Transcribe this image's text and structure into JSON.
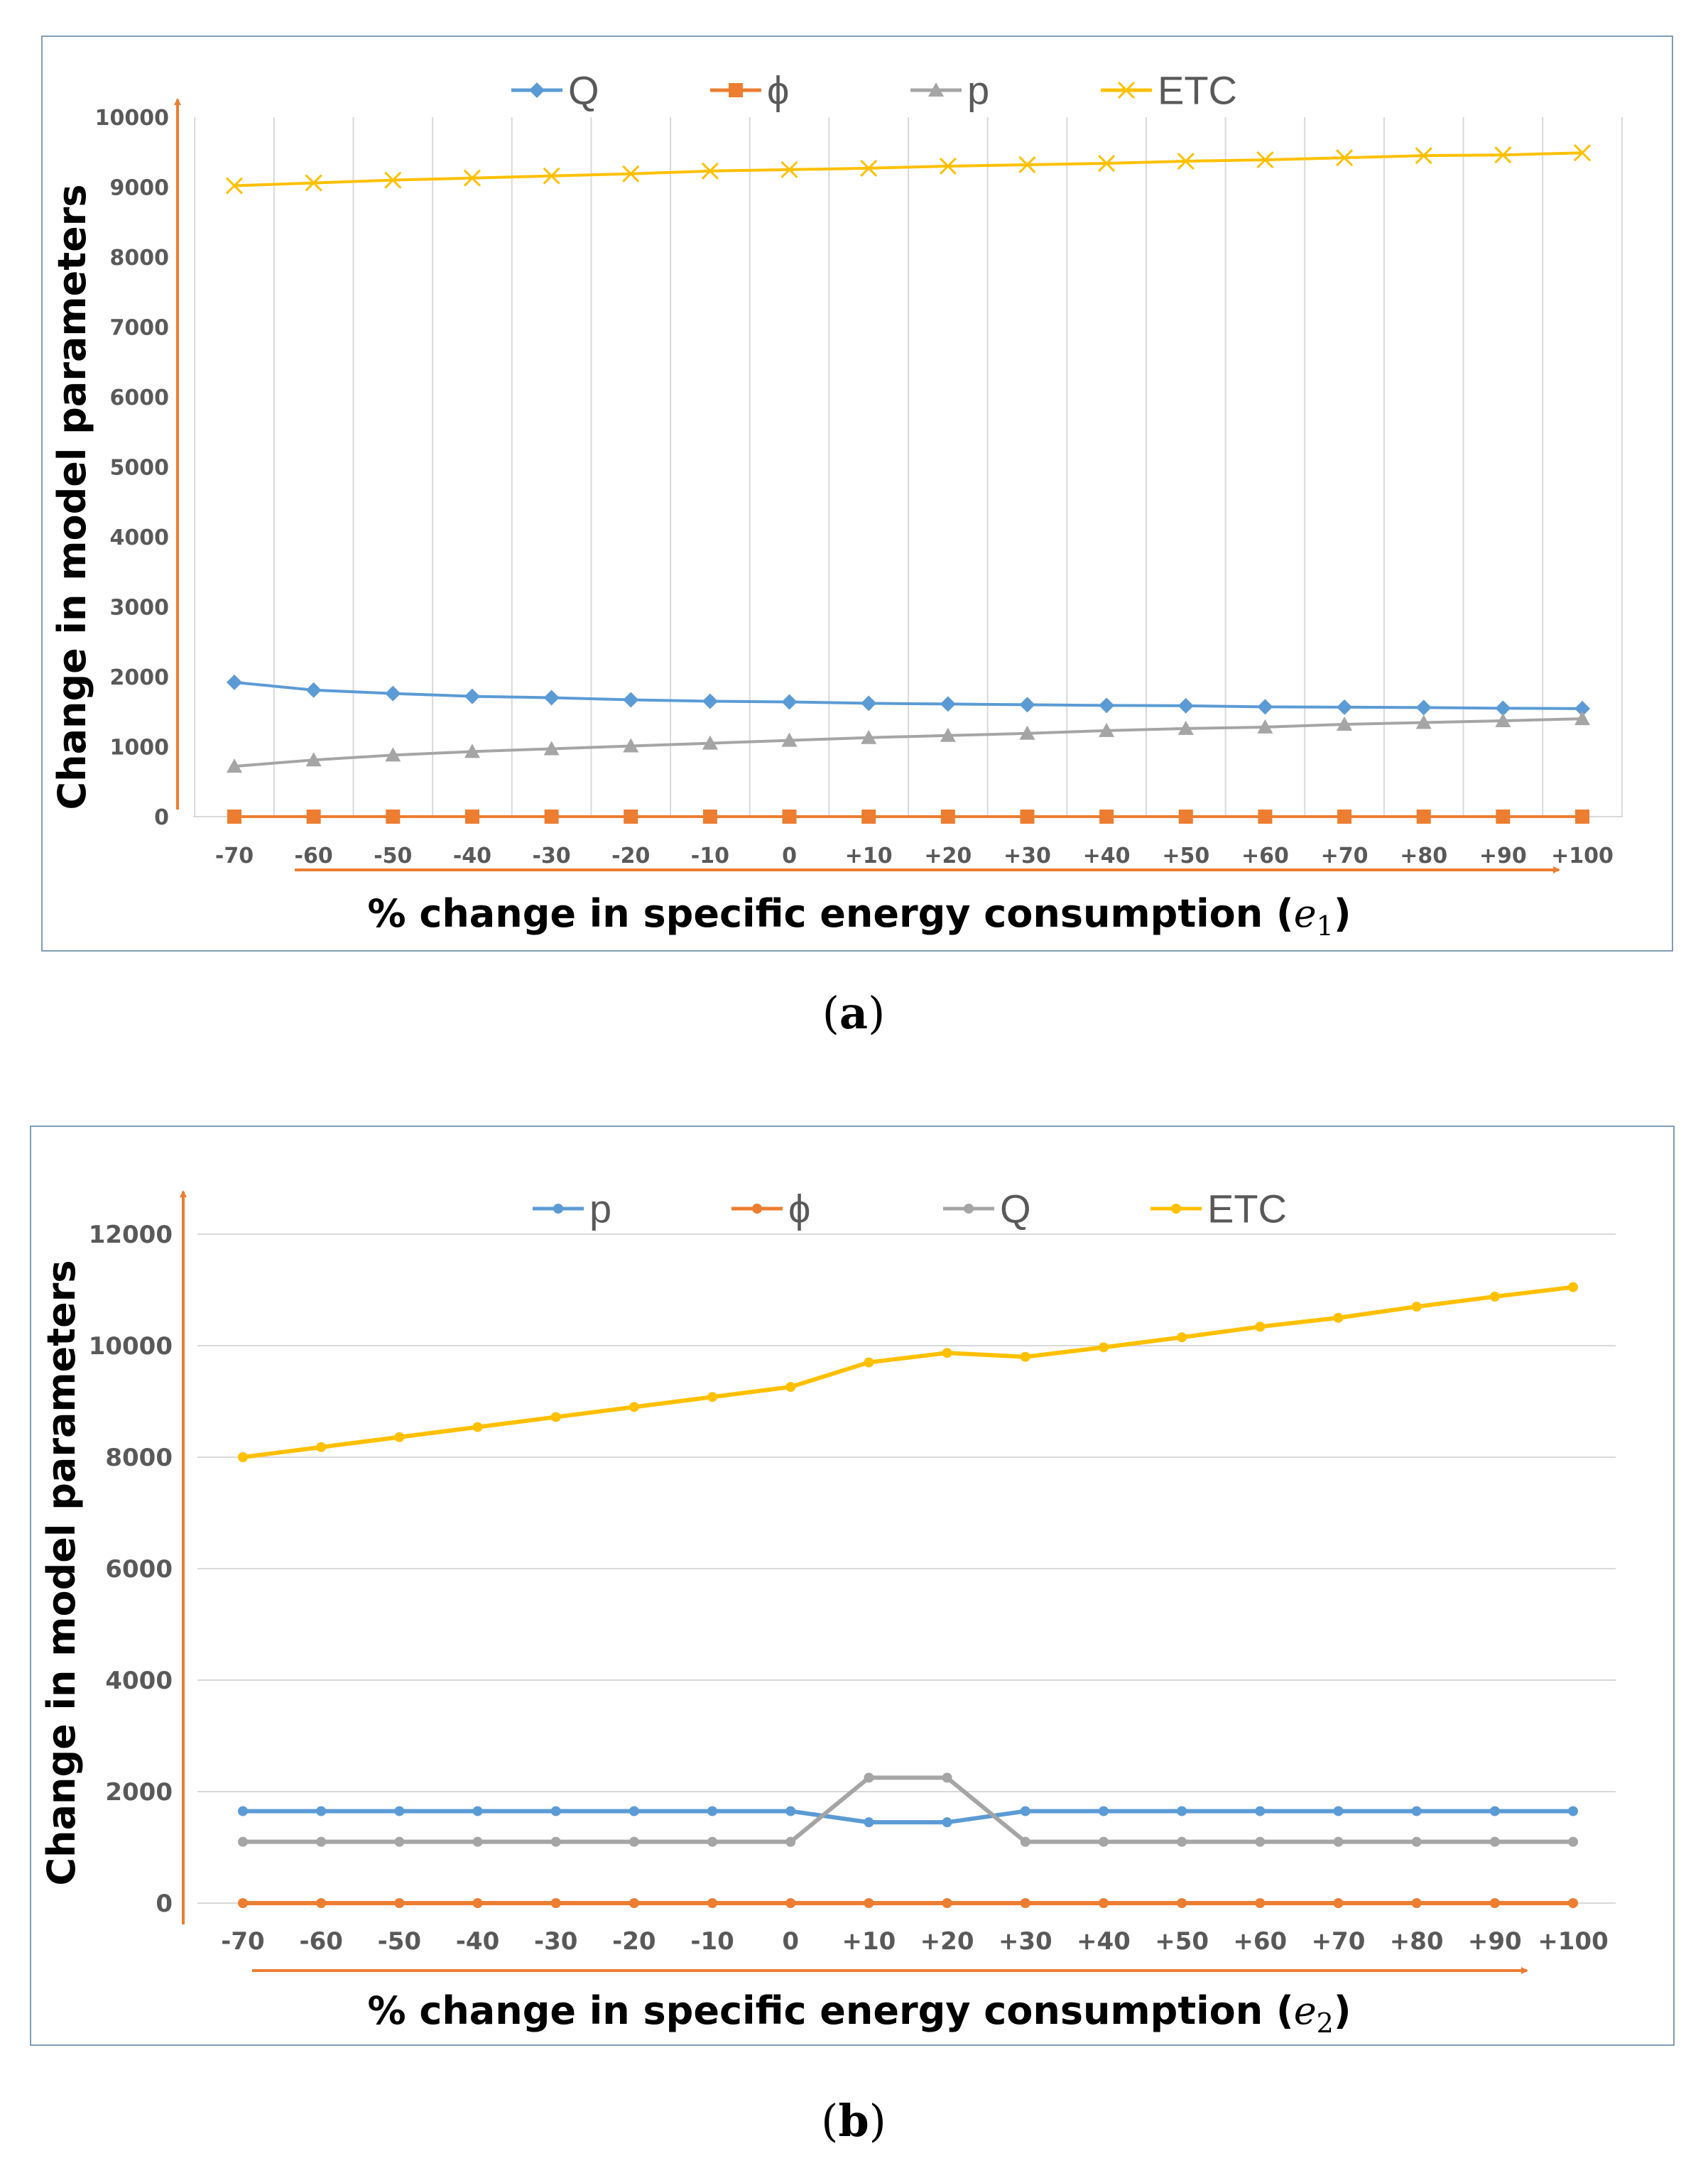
{
  "chart_data": [
    {
      "panel": "a",
      "type": "line",
      "categories": [
        "-70",
        "-60",
        "-50",
        "-40",
        "-30",
        "-20",
        "-10",
        "0",
        "+10",
        "+20",
        "+30",
        "+40",
        "+50",
        "+60",
        "+70",
        "+80",
        "+90",
        "+100"
      ],
      "series": [
        {
          "name": "Q",
          "color": "#5b9bd5",
          "marker": "diamond",
          "values": [
            1920,
            1810,
            1760,
            1720,
            1700,
            1670,
            1650,
            1640,
            1620,
            1610,
            1600,
            1590,
            1585,
            1570,
            1565,
            1560,
            1550,
            1545
          ]
        },
        {
          "name": "ϕ",
          "color": "#ed7d31",
          "marker": "square",
          "values": [
            0,
            0,
            0,
            0,
            0,
            0,
            0,
            0,
            0,
            0,
            0,
            0,
            0,
            0,
            0,
            0,
            0,
            0
          ]
        },
        {
          "name": "p",
          "color": "#a5a5a5",
          "marker": "triangle",
          "values": [
            720,
            810,
            880,
            930,
            970,
            1010,
            1050,
            1090,
            1130,
            1160,
            1190,
            1230,
            1260,
            1280,
            1320,
            1345,
            1370,
            1400
          ]
        },
        {
          "name": "ETC",
          "color": "#ffc000",
          "marker": "x",
          "values": [
            9020,
            9060,
            9100,
            9130,
            9160,
            9190,
            9230,
            9250,
            9270,
            9300,
            9320,
            9340,
            9370,
            9390,
            9420,
            9450,
            9460,
            9490
          ]
        }
      ],
      "yticks": [
        "0",
        "1000",
        "2000",
        "3000",
        "4000",
        "5000",
        "6000",
        "7000",
        "8000",
        "9000",
        "10000"
      ],
      "ylim": [
        0,
        10000
      ],
      "xlabel": "% change in specific energy consumption (",
      "xlabel_var": "e",
      "xlabel_sub": "1",
      "xlabel_end": ")",
      "ylabel": "Change in model parameters",
      "legend_position": "top-center",
      "vertical_grid": true,
      "horizontal_grid": false,
      "caption": "(a)"
    },
    {
      "panel": "b",
      "type": "line",
      "categories": [
        "-70",
        "-60",
        "-50",
        "-40",
        "-30",
        "-20",
        "-10",
        "0",
        "+10",
        "+20",
        "+30",
        "+40",
        "+50",
        "+60",
        "+70",
        "+80",
        "+90",
        "+100"
      ],
      "series": [
        {
          "name": "p",
          "color": "#5b9bd5",
          "marker": "dot",
          "values": [
            1650,
            1650,
            1650,
            1650,
            1650,
            1650,
            1650,
            1650,
            1450,
            1450,
            1650,
            1650,
            1650,
            1650,
            1650,
            1650,
            1650,
            1650
          ]
        },
        {
          "name": "ϕ",
          "color": "#ed7d31",
          "marker": "dot",
          "values": [
            0,
            0,
            0,
            0,
            0,
            0,
            0,
            0,
            0,
            0,
            0,
            0,
            0,
            0,
            0,
            0,
            0,
            0
          ]
        },
        {
          "name": "Q",
          "color": "#a5a5a5",
          "marker": "dot",
          "values": [
            1100,
            1100,
            1100,
            1100,
            1100,
            1100,
            1100,
            1100,
            2250,
            2250,
            1100,
            1100,
            1100,
            1100,
            1100,
            1100,
            1100,
            1100
          ]
        },
        {
          "name": "ETC",
          "color": "#ffc000",
          "marker": "dot",
          "values": [
            8000,
            8180,
            8360,
            8540,
            8720,
            8900,
            9080,
            9260,
            9700,
            9870,
            9800,
            9970,
            10150,
            10340,
            10500,
            10700,
            10880,
            11050
          ]
        }
      ],
      "yticks": [
        "0",
        "2000",
        "4000",
        "6000",
        "8000",
        "10000",
        "12000"
      ],
      "ylim": [
        0,
        12000
      ],
      "xlabel": "% change in specific energy consumption (",
      "xlabel_var": "e",
      "xlabel_sub": "2",
      "xlabel_end": ")",
      "ylabel": "Change in model parameters",
      "legend_position": "top-center",
      "vertical_grid": false,
      "horizontal_grid": true,
      "caption": "(b)"
    }
  ],
  "captions": {
    "a": "a",
    "b": "b"
  }
}
